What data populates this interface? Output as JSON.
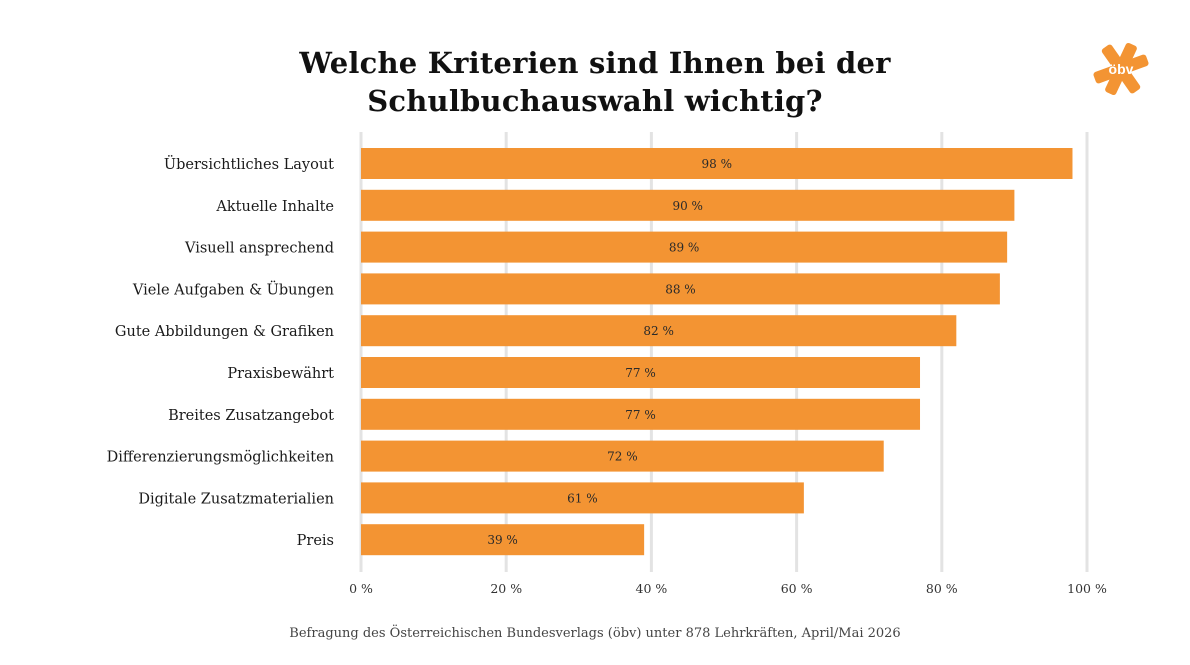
{
  "title_line1": "Welche Kriterien sind Ihnen bei der",
  "title_line2": "Schulbuchauswahl wichtig?",
  "logo_text": "öbv",
  "footer": "Befragung des Österreichischen Bundesverlags (öbv) unter 878 Lehrkräften, April/Mai 2026",
  "colors": {
    "bar": "#F39433",
    "grid": "#e3e3e3",
    "logo": "#F39433"
  },
  "chart_data": {
    "type": "bar",
    "orientation": "horizontal",
    "categories": [
      "Übersichtliches Layout",
      "Aktuelle Inhalte",
      "Visuell ansprechend",
      "Viele Aufgaben & Übungen",
      "Gute Abbildungen & Grafiken",
      "Praxisbewährt",
      "Breites Zusatzangebot",
      "Differenzierungsmöglichkeiten",
      "Digitale Zusatzmaterialien",
      "Preis"
    ],
    "values": [
      98,
      90,
      89,
      88,
      82,
      77,
      77,
      72,
      61,
      39
    ],
    "value_labels": [
      "98 %",
      "90 %",
      "89 %",
      "88 %",
      "82 %",
      "77 %",
      "77 %",
      "72 %",
      "61 %",
      "39 %"
    ],
    "xlim": [
      0,
      100
    ],
    "xticks": [
      0,
      20,
      40,
      60,
      80,
      100
    ],
    "xtick_labels": [
      "0 %",
      "20 %",
      "40 %",
      "60 %",
      "80 %",
      "100 %"
    ],
    "grid": true
  }
}
